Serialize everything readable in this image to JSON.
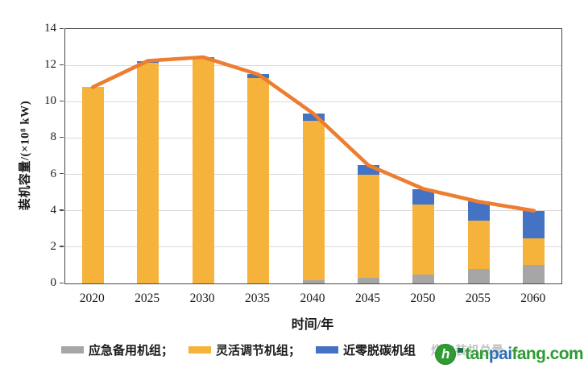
{
  "chart_data": {
    "type": "bar",
    "stacked": true,
    "categories": [
      "2020",
      "2025",
      "2030",
      "2035",
      "2040",
      "2045",
      "2050",
      "2055",
      "2060"
    ],
    "series": [
      {
        "name": "应急备用机组",
        "color": "#a6a6a6",
        "values": [
          0,
          0,
          0,
          0,
          0.2,
          0.3,
          0.5,
          0.8,
          1.0
        ]
      },
      {
        "name": "灵活调节机组",
        "color": "#f6b33b",
        "values": [
          10.8,
          12.15,
          12.35,
          11.3,
          8.75,
          5.7,
          3.85,
          2.65,
          1.5
        ]
      },
      {
        "name": "近零脱碳机组",
        "color": "#4472c4",
        "values": [
          0,
          0.1,
          0.1,
          0.2,
          0.4,
          0.5,
          0.85,
          1.05,
          1.5
        ]
      }
    ],
    "line_series": {
      "name": "煤电装机总量",
      "color": "#ed7d31",
      "values": [
        10.8,
        12.25,
        12.45,
        11.5,
        9.35,
        6.5,
        5.2,
        4.5,
        4.0
      ]
    },
    "xlabel": "时间/年",
    "ylabel": "装机容量/(×10⁸ kW)",
    "ylim": [
      0,
      14
    ],
    "yticks": [
      "0",
      "2",
      "4",
      "6",
      "8",
      "10",
      "12",
      "14"
    ],
    "grid": true,
    "gridline_color": "#d9d9d9",
    "legend_position": "bottom"
  },
  "legend": {
    "items": [
      {
        "label": "应急备用机组；",
        "color": "#a6a6a6",
        "type": "box",
        "faded": false
      },
      {
        "label": "灵活调节机组；",
        "color": "#f6b33b",
        "type": "box",
        "faded": false
      },
      {
        "label": "近零脱碳机组",
        "color": "#4472c4",
        "type": "box",
        "faded": false
      },
      {
        "label": "煤电装机总量",
        "color": "#ed7d31",
        "type": "line",
        "faded": true
      }
    ]
  },
  "watermark": {
    "logo_letter": "h",
    "text_tan": "tan",
    "text_pai": "pai",
    "text_fang": "fang",
    "text_com": ".com",
    "green": "#2e9c33",
    "blue": "#2f6eb5"
  }
}
